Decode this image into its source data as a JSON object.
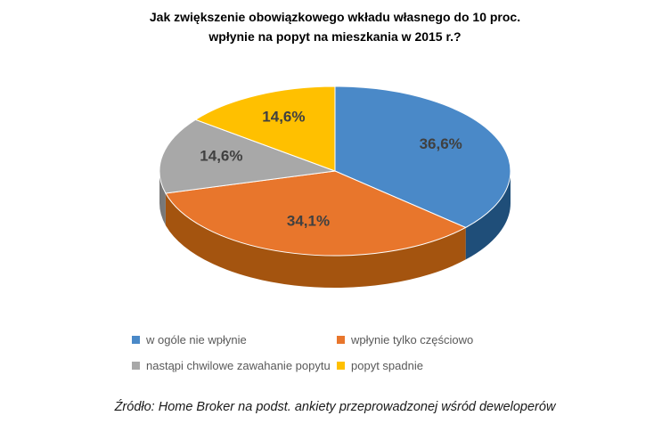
{
  "chart_data": {
    "type": "pie",
    "title_line1": "Jak zwiększenie obowiązkowego wkładu własnego do 10 proc.",
    "title_line2": "wpłynie na popyt na mieszkania w 2015 r.?",
    "style": "3d-pie",
    "start_angle_deg": 90,
    "direction": "clockwise",
    "label_color": "#404040",
    "legend_position": "bottom",
    "slices": [
      {
        "label": "w ogóle nie wpłynie",
        "value": 36.6,
        "pct_label": "36,6%",
        "color": "#4A89C8",
        "dark": "#1F4E79"
      },
      {
        "label": "wpłynie tylko częściowo",
        "value": 34.1,
        "pct_label": "34,1%",
        "color": "#E8762C",
        "dark": "#A4540F"
      },
      {
        "label": "nastąpi chwilowe zawahanie popytu",
        "value": 14.6,
        "pct_label": "14,6%",
        "color": "#A8A8A8",
        "dark": "#787878"
      },
      {
        "label": "popyt spadnie",
        "value": 14.6,
        "pct_label": "14,6%",
        "color": "#FFC000",
        "dark": "#B08500"
      }
    ],
    "source": "Źródło: Home Broker na podst. ankiety przeprowadzonej wśród deweloperów"
  }
}
